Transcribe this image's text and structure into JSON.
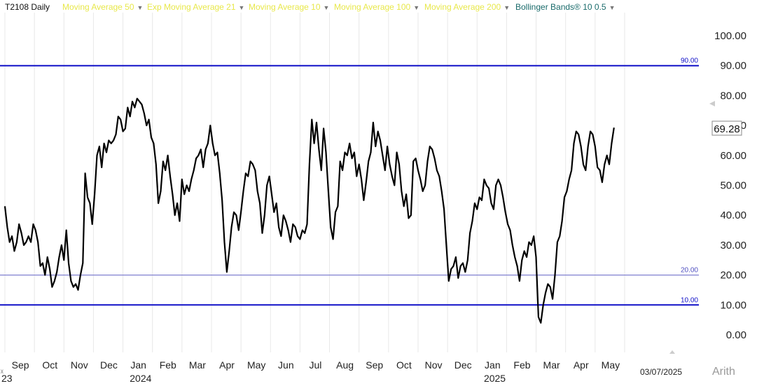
{
  "header": {
    "symbol": "T2108 Daily",
    "indicators": [
      {
        "label": "Moving Average 50",
        "color": "#e8e84a"
      },
      {
        "label": "Exp Moving Average 21",
        "color": "#e8e84a"
      },
      {
        "label": "Moving Average 10",
        "color": "#e8e84a"
      },
      {
        "label": "Moving Average 100",
        "color": "#e8e84a"
      },
      {
        "label": "Moving Average 200",
        "color": "#e8e84a"
      },
      {
        "label": "Bollinger Bands® 10 0.5",
        "color": "#1a6b6b"
      }
    ]
  },
  "footer": {
    "date_label": "03/07/2025",
    "scale_label": "Arith",
    "left_year_fragment": "23"
  },
  "colors": {
    "line": "#000000",
    "ref_line_strong": "#1010c8",
    "ref_line_light": "#8080d0",
    "gridline": "#e8e8e8",
    "value_box_border": "#888888"
  },
  "chart_data": {
    "type": "line",
    "title": "T2108 Daily",
    "ylim": [
      0,
      100
    ],
    "yticks": [
      "0.00",
      "10.00",
      "20.00",
      "30.00",
      "40.00",
      "50.00",
      "60.00",
      "70.00",
      "80.00",
      "90.00",
      "100.00"
    ],
    "xticks": [
      {
        "label": "Sep",
        "pos": 0.5
      },
      {
        "label": "Oct",
        "pos": 1.5
      },
      {
        "label": "Nov",
        "pos": 2.5
      },
      {
        "label": "Dec",
        "pos": 3.5
      },
      {
        "label": "Jan",
        "pos": 4.5
      },
      {
        "label": "Feb",
        "pos": 5.5
      },
      {
        "label": "Mar",
        "pos": 6.5
      },
      {
        "label": "Apr",
        "pos": 7.5
      },
      {
        "label": "May",
        "pos": 8.5
      },
      {
        "label": "Jun",
        "pos": 9.5
      },
      {
        "label": "Jul",
        "pos": 10.5
      },
      {
        "label": "Aug",
        "pos": 11.5
      },
      {
        "label": "Sep",
        "pos": 12.5
      },
      {
        "label": "Oct",
        "pos": 13.5
      },
      {
        "label": "Nov",
        "pos": 14.5
      },
      {
        "label": "Dec",
        "pos": 15.5
      },
      {
        "label": "Jan",
        "pos": 16.5
      },
      {
        "label": "Feb",
        "pos": 17.5
      },
      {
        "label": "Mar",
        "pos": 18.5
      },
      {
        "label": "Apr",
        "pos": 19.5
      },
      {
        "label": "May",
        "pos": 20.5
      }
    ],
    "year_labels": [
      {
        "label": "2024",
        "pos": 4.6
      },
      {
        "label": "2025",
        "pos": 16.6
      }
    ],
    "xlim": [
      0,
      23.3
    ],
    "reference_lines": [
      {
        "value": 90,
        "label": "90.00",
        "style": "strong"
      },
      {
        "value": 20,
        "label": "20.00",
        "style": "light"
      },
      {
        "value": 10,
        "label": "10.00",
        "style": "strong"
      }
    ],
    "last_value": "69.28",
    "series": [
      {
        "color": "#000000",
        "points": [
          [
            0.0,
            43
          ],
          [
            0.08,
            36
          ],
          [
            0.16,
            31
          ],
          [
            0.24,
            33
          ],
          [
            0.32,
            28
          ],
          [
            0.4,
            31
          ],
          [
            0.48,
            37
          ],
          [
            0.56,
            34
          ],
          [
            0.64,
            30
          ],
          [
            0.72,
            31
          ],
          [
            0.8,
            33
          ],
          [
            0.88,
            31
          ],
          [
            0.96,
            37
          ],
          [
            1.04,
            35
          ],
          [
            1.12,
            31
          ],
          [
            1.2,
            23
          ],
          [
            1.28,
            24
          ],
          [
            1.36,
            20
          ],
          [
            1.44,
            26
          ],
          [
            1.52,
            22
          ],
          [
            1.6,
            16
          ],
          [
            1.68,
            18
          ],
          [
            1.76,
            21
          ],
          [
            1.84,
            26
          ],
          [
            1.92,
            30
          ],
          [
            2.0,
            25
          ],
          [
            2.08,
            35
          ],
          [
            2.16,
            24
          ],
          [
            2.24,
            18
          ],
          [
            2.32,
            16
          ],
          [
            2.4,
            17
          ],
          [
            2.48,
            15
          ],
          [
            2.56,
            20
          ],
          [
            2.64,
            24
          ],
          [
            2.72,
            54
          ],
          [
            2.8,
            46
          ],
          [
            2.88,
            44
          ],
          [
            2.96,
            37
          ],
          [
            3.04,
            47
          ],
          [
            3.12,
            60
          ],
          [
            3.2,
            63
          ],
          [
            3.28,
            56
          ],
          [
            3.36,
            64
          ],
          [
            3.44,
            61
          ],
          [
            3.52,
            65
          ],
          [
            3.6,
            64
          ],
          [
            3.68,
            65
          ],
          [
            3.76,
            67
          ],
          [
            3.84,
            73
          ],
          [
            3.92,
            72
          ],
          [
            4.0,
            68
          ],
          [
            4.08,
            69
          ],
          [
            4.16,
            76
          ],
          [
            4.24,
            73
          ],
          [
            4.32,
            78
          ],
          [
            4.4,
            76
          ],
          [
            4.48,
            79
          ],
          [
            4.56,
            78
          ],
          [
            4.64,
            77
          ],
          [
            4.72,
            74
          ],
          [
            4.8,
            70
          ],
          [
            4.88,
            72
          ],
          [
            4.96,
            66
          ],
          [
            5.04,
            64
          ],
          [
            5.12,
            57
          ],
          [
            5.2,
            44
          ],
          [
            5.28,
            48
          ],
          [
            5.36,
            58
          ],
          [
            5.44,
            55
          ],
          [
            5.52,
            60
          ],
          [
            5.6,
            53
          ],
          [
            5.68,
            47
          ],
          [
            5.76,
            40
          ],
          [
            5.84,
            44
          ],
          [
            5.92,
            38
          ],
          [
            6.0,
            52
          ],
          [
            6.08,
            47
          ],
          [
            6.16,
            50
          ],
          [
            6.24,
            48
          ],
          [
            6.32,
            52
          ],
          [
            6.4,
            55
          ],
          [
            6.48,
            59
          ],
          [
            6.56,
            60
          ],
          [
            6.64,
            62
          ],
          [
            6.72,
            56
          ],
          [
            6.8,
            62
          ],
          [
            6.88,
            64
          ],
          [
            6.96,
            70
          ],
          [
            7.04,
            64
          ],
          [
            7.12,
            60
          ],
          [
            7.2,
            61
          ],
          [
            7.28,
            54
          ],
          [
            7.36,
            45
          ],
          [
            7.44,
            31
          ],
          [
            7.52,
            21
          ],
          [
            7.6,
            28
          ],
          [
            7.68,
            36
          ],
          [
            7.76,
            41
          ],
          [
            7.84,
            40
          ],
          [
            7.92,
            35
          ],
          [
            8.0,
            41
          ],
          [
            8.08,
            48
          ],
          [
            8.16,
            54
          ],
          [
            8.24,
            53
          ],
          [
            8.32,
            58
          ],
          [
            8.4,
            57
          ],
          [
            8.48,
            55
          ],
          [
            8.56,
            48
          ],
          [
            8.64,
            44
          ],
          [
            8.72,
            34
          ],
          [
            8.8,
            40
          ],
          [
            8.88,
            50
          ],
          [
            8.96,
            53
          ],
          [
            9.04,
            47
          ],
          [
            9.12,
            41
          ],
          [
            9.2,
            44
          ],
          [
            9.28,
            36
          ],
          [
            9.36,
            33
          ],
          [
            9.44,
            40
          ],
          [
            9.52,
            38
          ],
          [
            9.6,
            35
          ],
          [
            9.68,
            31
          ],
          [
            9.76,
            37
          ],
          [
            9.84,
            36
          ],
          [
            9.92,
            33
          ],
          [
            10.0,
            32
          ],
          [
            10.08,
            35
          ],
          [
            10.16,
            34
          ],
          [
            10.24,
            37
          ],
          [
            10.32,
            57
          ],
          [
            10.4,
            72
          ],
          [
            10.48,
            64
          ],
          [
            10.56,
            71
          ],
          [
            10.64,
            62
          ],
          [
            10.72,
            55
          ],
          [
            10.8,
            69
          ],
          [
            10.88,
            61
          ],
          [
            10.96,
            48
          ],
          [
            11.04,
            36
          ],
          [
            11.12,
            32
          ],
          [
            11.2,
            41
          ],
          [
            11.28,
            43
          ],
          [
            11.36,
            58
          ],
          [
            11.44,
            55
          ],
          [
            11.52,
            61
          ],
          [
            11.6,
            60
          ],
          [
            11.68,
            64
          ],
          [
            11.76,
            59
          ],
          [
            11.84,
            61
          ],
          [
            11.92,
            53
          ],
          [
            12.0,
            57
          ],
          [
            12.08,
            52
          ],
          [
            12.16,
            45
          ],
          [
            12.24,
            51
          ],
          [
            12.32,
            58
          ],
          [
            12.4,
            61
          ],
          [
            12.48,
            71
          ],
          [
            12.56,
            63
          ],
          [
            12.64,
            68
          ],
          [
            12.72,
            65
          ],
          [
            12.8,
            60
          ],
          [
            12.88,
            55
          ],
          [
            12.96,
            63
          ],
          [
            13.04,
            57
          ],
          [
            13.12,
            53
          ],
          [
            13.2,
            50
          ],
          [
            13.28,
            61
          ],
          [
            13.36,
            57
          ],
          [
            13.44,
            48
          ],
          [
            13.52,
            43
          ],
          [
            13.6,
            47
          ],
          [
            13.68,
            39
          ],
          [
            13.76,
            40
          ],
          [
            13.84,
            58
          ],
          [
            13.92,
            59
          ],
          [
            14.0,
            55
          ],
          [
            14.08,
            52
          ],
          [
            14.16,
            48
          ],
          [
            14.24,
            50
          ],
          [
            14.32,
            58
          ],
          [
            14.4,
            63
          ],
          [
            14.48,
            62
          ],
          [
            14.56,
            59
          ],
          [
            14.64,
            55
          ],
          [
            14.72,
            53
          ],
          [
            14.8,
            48
          ],
          [
            14.88,
            42
          ],
          [
            14.96,
            30
          ],
          [
            15.04,
            18
          ],
          [
            15.12,
            22
          ],
          [
            15.2,
            23
          ],
          [
            15.28,
            26
          ],
          [
            15.36,
            19
          ],
          [
            15.44,
            23
          ],
          [
            15.52,
            24
          ],
          [
            15.6,
            21
          ],
          [
            15.68,
            25
          ],
          [
            15.76,
            34
          ],
          [
            15.84,
            38
          ],
          [
            15.92,
            44
          ],
          [
            16.0,
            42
          ],
          [
            16.08,
            46
          ],
          [
            16.16,
            45
          ],
          [
            16.24,
            52
          ],
          [
            16.32,
            50
          ],
          [
            16.4,
            49
          ],
          [
            16.48,
            44
          ],
          [
            16.56,
            42
          ],
          [
            16.64,
            50
          ],
          [
            16.72,
            52
          ],
          [
            16.8,
            50
          ],
          [
            16.88,
            46
          ],
          [
            16.96,
            41
          ],
          [
            17.04,
            37
          ],
          [
            17.12,
            35
          ],
          [
            17.2,
            30
          ],
          [
            17.28,
            26
          ],
          [
            17.36,
            23
          ],
          [
            17.44,
            18
          ],
          [
            17.52,
            25
          ],
          [
            17.6,
            28
          ],
          [
            17.68,
            26
          ],
          [
            17.76,
            31
          ],
          [
            17.84,
            30
          ],
          [
            17.92,
            33
          ],
          [
            18.0,
            26
          ],
          [
            18.08,
            6
          ],
          [
            18.16,
            4
          ],
          [
            18.24,
            10
          ],
          [
            18.32,
            14
          ],
          [
            18.4,
            17
          ],
          [
            18.48,
            16
          ],
          [
            18.56,
            12
          ],
          [
            18.64,
            20
          ],
          [
            18.72,
            31
          ],
          [
            18.8,
            33
          ],
          [
            18.88,
            38
          ],
          [
            18.96,
            46
          ],
          [
            19.04,
            48
          ],
          [
            19.12,
            52
          ],
          [
            19.2,
            55
          ],
          [
            19.28,
            64
          ],
          [
            19.36,
            68
          ],
          [
            19.44,
            67
          ],
          [
            19.52,
            63
          ],
          [
            19.6,
            57
          ],
          [
            19.68,
            55
          ],
          [
            19.76,
            63
          ],
          [
            19.84,
            68
          ],
          [
            19.92,
            67
          ],
          [
            20.0,
            63
          ],
          [
            20.08,
            56
          ],
          [
            20.16,
            55
          ],
          [
            20.24,
            51
          ],
          [
            20.32,
            57
          ],
          [
            20.4,
            60
          ],
          [
            20.48,
            57
          ],
          [
            20.56,
            64
          ],
          [
            20.64,
            69.28
          ]
        ]
      }
    ]
  }
}
